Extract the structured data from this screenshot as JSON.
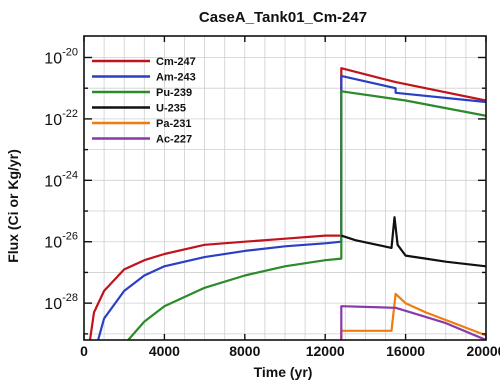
{
  "chart_data": {
    "type": "line",
    "title": "CaseA_Tank01_Cm-247",
    "xlabel": "Time (yr)",
    "ylabel": "Flux (Ci or Kg/yr)",
    "xlim": [
      0,
      20000
    ],
    "ylim_log10": [
      -29.2,
      -19.3
    ],
    "yscale": "log",
    "grid": true,
    "legend_position": "top-left",
    "x_ticks": [
      "0",
      "4000",
      "8000",
      "12000",
      "16000",
      "20000"
    ],
    "y_ticks": [
      {
        "base": "10",
        "exp": "-20"
      },
      {
        "base": "10",
        "exp": "-22"
      },
      {
        "base": "10",
        "exp": "-24"
      },
      {
        "base": "10",
        "exp": "-26"
      },
      {
        "base": "10",
        "exp": "-28"
      }
    ],
    "series": [
      {
        "name": "Cm-247",
        "color": "#c0141c",
        "points": [
          [
            300,
            -29.2
          ],
          [
            500,
            -28.3
          ],
          [
            1000,
            -27.6
          ],
          [
            2000,
            -26.9
          ],
          [
            3000,
            -26.6
          ],
          [
            4000,
            -26.4
          ],
          [
            6000,
            -26.1
          ],
          [
            8000,
            -26.0
          ],
          [
            10000,
            -25.9
          ],
          [
            12000,
            -25.8
          ],
          [
            12800,
            -25.8
          ],
          [
            12800,
            -20.35
          ],
          [
            15500,
            -20.8
          ],
          [
            20000,
            -21.4
          ]
        ]
      },
      {
        "name": "Am-243",
        "color": "#2a3fc4",
        "points": [
          [
            700,
            -29.2
          ],
          [
            1000,
            -28.5
          ],
          [
            2000,
            -27.6
          ],
          [
            3000,
            -27.1
          ],
          [
            4000,
            -26.8
          ],
          [
            6000,
            -26.5
          ],
          [
            8000,
            -26.3
          ],
          [
            10000,
            -26.15
          ],
          [
            12000,
            -26.05
          ],
          [
            12800,
            -26.0
          ],
          [
            12800,
            -20.6
          ],
          [
            15500,
            -21.0
          ],
          [
            15500,
            -21.15
          ],
          [
            20000,
            -21.45
          ]
        ]
      },
      {
        "name": "Pu-239",
        "color": "#2b8a2a",
        "points": [
          [
            2200,
            -29.2
          ],
          [
            3000,
            -28.6
          ],
          [
            4000,
            -28.1
          ],
          [
            6000,
            -27.5
          ],
          [
            8000,
            -27.1
          ],
          [
            10000,
            -26.8
          ],
          [
            12000,
            -26.6
          ],
          [
            12800,
            -26.55
          ],
          [
            12800,
            -21.1
          ],
          [
            16000,
            -21.4
          ],
          [
            20000,
            -21.9
          ]
        ]
      },
      {
        "name": "U-235",
        "color": "#111111",
        "points": [
          [
            12800,
            -25.8
          ],
          [
            13500,
            -25.95
          ],
          [
            15300,
            -26.2
          ],
          [
            15450,
            -25.2
          ],
          [
            15600,
            -26.1
          ],
          [
            16000,
            -26.45
          ],
          [
            17000,
            -26.55
          ],
          [
            18000,
            -26.65
          ],
          [
            20000,
            -26.8
          ]
        ]
      },
      {
        "name": "Pa-231",
        "color": "#ef7d0d",
        "points": [
          [
            12800,
            -29.2
          ],
          [
            12800,
            -28.9
          ],
          [
            15300,
            -28.9
          ],
          [
            15500,
            -27.7
          ],
          [
            16000,
            -28.0
          ],
          [
            17000,
            -28.3
          ],
          [
            18000,
            -28.55
          ],
          [
            20000,
            -29.05
          ]
        ]
      },
      {
        "name": "Ac-227",
        "color": "#8a3aa8",
        "points": [
          [
            12800,
            -29.2
          ],
          [
            12800,
            -28.1
          ],
          [
            15500,
            -28.15
          ],
          [
            16000,
            -28.25
          ],
          [
            18000,
            -28.65
          ],
          [
            20000,
            -29.2
          ]
        ]
      }
    ]
  }
}
